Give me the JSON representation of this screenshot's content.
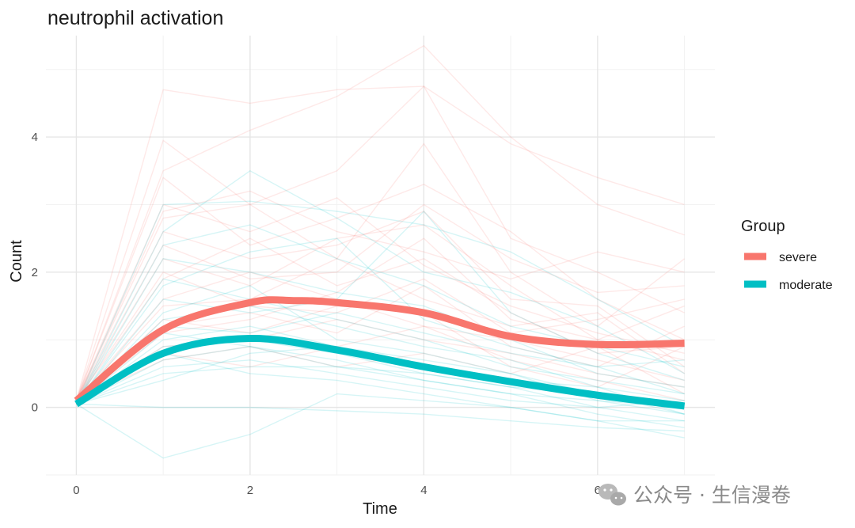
{
  "chart_data": {
    "type": "line",
    "title": "neutrophil activation",
    "xlabel": "Time",
    "ylabel": "Count",
    "xlim": [
      -0.35,
      7.35
    ],
    "ylim": [
      -1.0,
      5.5
    ],
    "x_ticks": [
      0,
      2,
      4,
      6
    ],
    "y_ticks": [
      0,
      2,
      4
    ],
    "x_minor_gridlines": [
      1,
      3,
      5,
      7
    ],
    "y_minor_gridlines": [
      -1,
      1,
      3,
      5
    ],
    "x_tick_labels": [
      "0",
      "2",
      "4",
      "6"
    ],
    "y_tick_labels": [
      "0",
      "2",
      "4"
    ],
    "grid": true,
    "legend": {
      "title": "Group",
      "position": "right",
      "entries": [
        {
          "label": "severe",
          "color": "#F8766D"
        },
        {
          "label": "moderate",
          "color": "#00BFC4"
        }
      ]
    },
    "series": [
      {
        "name": "severe",
        "color": "#F8766D",
        "x": [
          0,
          1,
          2,
          2.5,
          3,
          4,
          5,
          6,
          7
        ],
        "values": [
          0.1,
          1.15,
          1.55,
          1.58,
          1.55,
          1.4,
          1.05,
          0.93,
          0.95
        ]
      },
      {
        "name": "moderate",
        "color": "#00BFC4",
        "x": [
          0,
          1,
          2,
          3,
          4,
          5,
          6,
          7
        ],
        "values": [
          0.05,
          0.8,
          1.02,
          0.85,
          0.6,
          0.38,
          0.18,
          0.02
        ]
      }
    ],
    "individual_trajectories": {
      "x": [
        0,
        1,
        2,
        3,
        4,
        5,
        6,
        7
      ],
      "note_visible": false,
      "severe_examples": [
        [
          0.1,
          4.7,
          4.5,
          4.7,
          4.75,
          3.9,
          3.4,
          3.0
        ],
        [
          0.1,
          3.5,
          4.1,
          4.6,
          5.35,
          4.0,
          3.0,
          2.55
        ],
        [
          0.1,
          3.95,
          3.0,
          3.5,
          4.75,
          2.5,
          2.0,
          1.4
        ],
        [
          0.1,
          3.4,
          2.4,
          2.8,
          3.3,
          2.6,
          1.6,
          1.0
        ],
        [
          0.1,
          2.8,
          3.0,
          2.2,
          3.9,
          2.0,
          1.2,
          2.2
        ],
        [
          0.1,
          2.6,
          2.2,
          2.4,
          2.9,
          1.6,
          1.5,
          0.6
        ],
        [
          0.1,
          2.2,
          1.8,
          2.5,
          2.7,
          1.8,
          1.0,
          1.5
        ],
        [
          0.1,
          1.9,
          2.5,
          1.8,
          2.2,
          1.4,
          0.8,
          0.9
        ],
        [
          0.1,
          1.5,
          1.6,
          2.2,
          1.6,
          1.2,
          1.4,
          0.5
        ],
        [
          0.1,
          1.2,
          1.4,
          1.1,
          1.8,
          0.9,
          0.6,
          1.2
        ],
        [
          0.1,
          0.9,
          1.0,
          1.3,
          1.0,
          0.8,
          0.5,
          0.3
        ],
        [
          0.1,
          0.7,
          0.9,
          0.6,
          0.8,
          0.5,
          0.9,
          0.2
        ],
        [
          0.1,
          2.4,
          1.9,
          2.0,
          3.0,
          2.2,
          1.7,
          1.8
        ],
        [
          0.1,
          1.6,
          2.0,
          1.6,
          1.2,
          1.0,
          0.7,
          0.4
        ],
        [
          0.1,
          3.0,
          2.6,
          3.1,
          2.1,
          1.5,
          1.1,
          0.8
        ],
        [
          0.1,
          1.1,
          1.3,
          1.7,
          2.5,
          1.3,
          1.0,
          0.7
        ],
        [
          0.1,
          2.0,
          1.5,
          1.4,
          1.9,
          1.1,
          1.3,
          1.6
        ],
        [
          0.1,
          0.8,
          0.6,
          0.9,
          1.2,
          0.7,
          0.4,
          0.1
        ],
        [
          0.1,
          2.9,
          3.2,
          2.6,
          2.3,
          1.9,
          2.3,
          2.0
        ],
        [
          0.1,
          1.3,
          1.1,
          1.5,
          1.4,
          0.6,
          0.3,
          0.9
        ]
      ],
      "moderate_examples": [
        [
          0.05,
          3.0,
          3.05,
          2.9,
          2.7,
          2.3,
          1.6,
          0.9
        ],
        [
          0.05,
          2.6,
          3.5,
          2.8,
          2.0,
          1.7,
          1.2,
          0.5
        ],
        [
          0.05,
          1.8,
          2.3,
          2.5,
          1.3,
          0.9,
          0.6,
          0.2
        ],
        [
          0.05,
          1.6,
          1.4,
          1.6,
          2.9,
          1.4,
          0.8,
          0.4
        ],
        [
          0.05,
          1.3,
          1.5,
          1.2,
          0.9,
          0.7,
          0.3,
          -0.1
        ],
        [
          0.05,
          1.0,
          1.2,
          0.9,
          0.7,
          0.5,
          0.2,
          0.0
        ],
        [
          0.05,
          0.9,
          1.0,
          0.8,
          0.5,
          0.3,
          0.0,
          -0.2
        ],
        [
          0.05,
          0.7,
          0.9,
          0.7,
          0.4,
          0.2,
          -0.1,
          -0.3
        ],
        [
          0.05,
          0.6,
          0.7,
          0.5,
          0.3,
          0.1,
          0.0,
          0.1
        ],
        [
          0.05,
          0.5,
          0.6,
          0.6,
          0.5,
          0.3,
          0.2,
          -0.1
        ],
        [
          0.05,
          -0.75,
          -0.4,
          0.2,
          0.1,
          0.0,
          -0.2,
          -0.45
        ],
        [
          0.05,
          0.0,
          0.0,
          -0.05,
          -0.1,
          -0.2,
          -0.3,
          -0.35
        ],
        [
          0.05,
          1.9,
          1.6,
          1.3,
          1.0,
          0.6,
          0.4,
          0.2
        ],
        [
          0.05,
          2.2,
          2.0,
          1.7,
          1.5,
          1.0,
          0.5,
          0.3
        ],
        [
          0.05,
          1.2,
          1.1,
          1.4,
          1.1,
          0.8,
          0.6,
          0.7
        ],
        [
          0.05,
          0.8,
          0.5,
          0.4,
          0.2,
          0.0,
          -0.2,
          -0.2
        ],
        [
          0.05,
          1.4,
          1.8,
          1.0,
          0.8,
          0.5,
          0.1,
          0.0
        ],
        [
          0.05,
          0.4,
          0.8,
          0.9,
          0.6,
          0.4,
          0.3,
          0.1
        ],
        [
          0.05,
          2.4,
          2.7,
          2.2,
          1.8,
          1.2,
          0.9,
          0.6
        ],
        [
          0.05,
          1.1,
          0.9,
          0.6,
          0.4,
          0.2,
          0.1,
          -0.1
        ]
      ]
    }
  },
  "watermark": {
    "text": "公众号 · 生信漫卷",
    "icon": "wechat-icon"
  }
}
